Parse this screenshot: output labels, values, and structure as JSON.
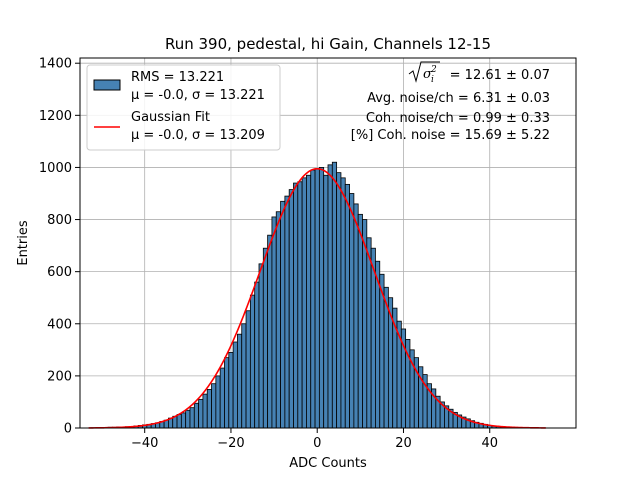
{
  "chart_data": {
    "type": "bar",
    "title": "Run 390, pedestal, hi Gain, Channels 12-15",
    "xlabel": "ADC Counts",
    "ylabel": "Entries",
    "xlim": [
      -55,
      60
    ],
    "ylim": [
      0,
      1420
    ],
    "xticks": [
      -40,
      -20,
      0,
      20,
      40
    ],
    "yticks": [
      0,
      200,
      400,
      600,
      800,
      1000,
      1200,
      1400
    ],
    "grid": true,
    "bar_color": "#4682b4",
    "fit_color": "#ff0000",
    "bin_width": 1,
    "bins": {
      "x": [
        -54,
        -53,
        -52,
        -51,
        -50,
        -49,
        -48,
        -47,
        -46,
        -45,
        -44,
        -43,
        -42,
        -41,
        -40,
        -39,
        -38,
        -37,
        -36,
        -35,
        -34,
        -33,
        -32,
        -31,
        -30,
        -29,
        -28,
        -27,
        -26,
        -25,
        -24,
        -23,
        -22,
        -21,
        -20,
        -19,
        -18,
        -17,
        -16,
        -15,
        -14,
        -13,
        -12,
        -11,
        -10,
        -9,
        -8,
        -7,
        -6,
        -5,
        -4,
        -3,
        -2,
        -1,
        0,
        1,
        2,
        3,
        4,
        5,
        6,
        7,
        8,
        9,
        10,
        11,
        12,
        13,
        14,
        15,
        16,
        17,
        18,
        19,
        20,
        21,
        22,
        23,
        24,
        25,
        26,
        27,
        28,
        29,
        30,
        31,
        32,
        33,
        34,
        35,
        36,
        37,
        38,
        39,
        40,
        41,
        42,
        43,
        44,
        45,
        46,
        47,
        48,
        49,
        50,
        51,
        52
      ],
      "values": [
        0,
        0,
        1,
        1,
        2,
        2,
        3,
        3,
        4,
        4,
        5,
        6,
        8,
        10,
        12,
        14,
        17,
        20,
        25,
        30,
        38,
        45,
        52,
        58,
        68,
        78,
        95,
        110,
        130,
        148,
        170,
        200,
        230,
        270,
        290,
        330,
        360,
        400,
        450,
        510,
        560,
        630,
        690,
        740,
        810,
        830,
        870,
        890,
        915,
        940,
        945,
        960,
        970,
        990,
        995,
        1000,
        970,
        1010,
        1020,
        980,
        960,
        935,
        900,
        860,
        820,
        800,
        730,
        690,
        640,
        590,
        540,
        500,
        460,
        410,
        380,
        340,
        300,
        270,
        235,
        205,
        170,
        150,
        122,
        100,
        85,
        72,
        60,
        50,
        42,
        35,
        28,
        22,
        18,
        14,
        10,
        7,
        5,
        4,
        3,
        2,
        2,
        1,
        1,
        1,
        0,
        0,
        0
      ]
    },
    "gaussian_fit": {
      "mu": -0.0,
      "sigma": 13.209,
      "amplitude": 995,
      "x_range": [
        -53,
        53
      ]
    },
    "legend": {
      "placement": "top-left",
      "entries": [
        {
          "kind": "patch",
          "line1": "RMS = 13.221",
          "line2": "μ = -0.0, σ = 13.221"
        },
        {
          "kind": "line",
          "line1": "Gaussian Fit",
          "line2": "μ = -0.0, σ = 13.209"
        }
      ]
    },
    "annotations": {
      "sigma_value": "= 12.61 ± 0.07",
      "avg_noise": "Avg. noise/ch = 6.31 ± 0.03",
      "coh_noise": "Coh. noise/ch = 0.99 ± 0.33",
      "pct_coh_noise": "[%] Coh. noise = 15.69 ± 5.22"
    }
  }
}
